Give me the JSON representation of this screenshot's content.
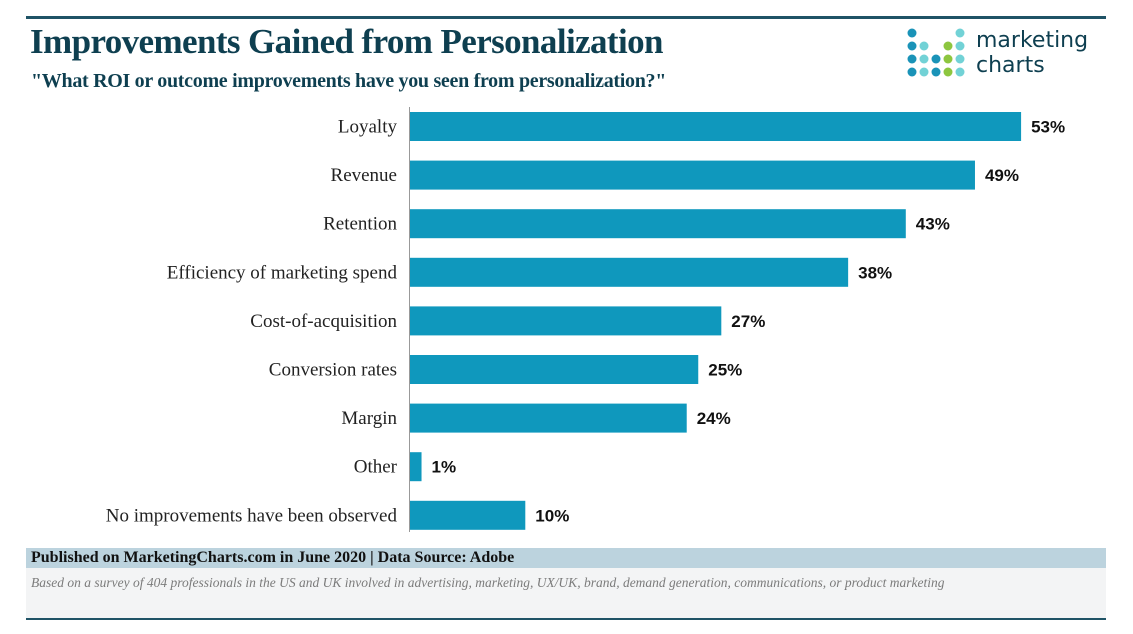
{
  "header": {
    "title": "Improvements Gained from Personalization",
    "subtitle": "\"What ROI or outcome improvements have you seen from personalization?\""
  },
  "logo": {
    "line1": "marketing",
    "line2": "charts",
    "colors": {
      "dark": "#1a93b8",
      "light": "#72d2d6",
      "green": "#8dc63f"
    }
  },
  "chart_data": {
    "type": "bar",
    "orientation": "horizontal",
    "categories": [
      "Loyalty",
      "Revenue",
      "Retention",
      "Efficiency of marketing spend",
      "Cost-of-acquisition",
      "Conversion rates",
      "Margin",
      "Other",
      "No improvements have been observed"
    ],
    "values": [
      53,
      49,
      43,
      38,
      27,
      25,
      24,
      1,
      10
    ],
    "labels": [
      "53%",
      "49%",
      "43%",
      "38%",
      "27%",
      "25%",
      "24%",
      "1%",
      "10%"
    ],
    "bar_color": "#0f98bd",
    "grid": false,
    "unit": "%"
  },
  "footer": {
    "published": "Published on MarketingCharts.com in June 2020 | Data Source: Adobe",
    "note": "Based on a survey of 404 professionals in the US and UK involved in advertising, marketing, UX/UK, brand, demand generation, communications, or product marketing"
  }
}
